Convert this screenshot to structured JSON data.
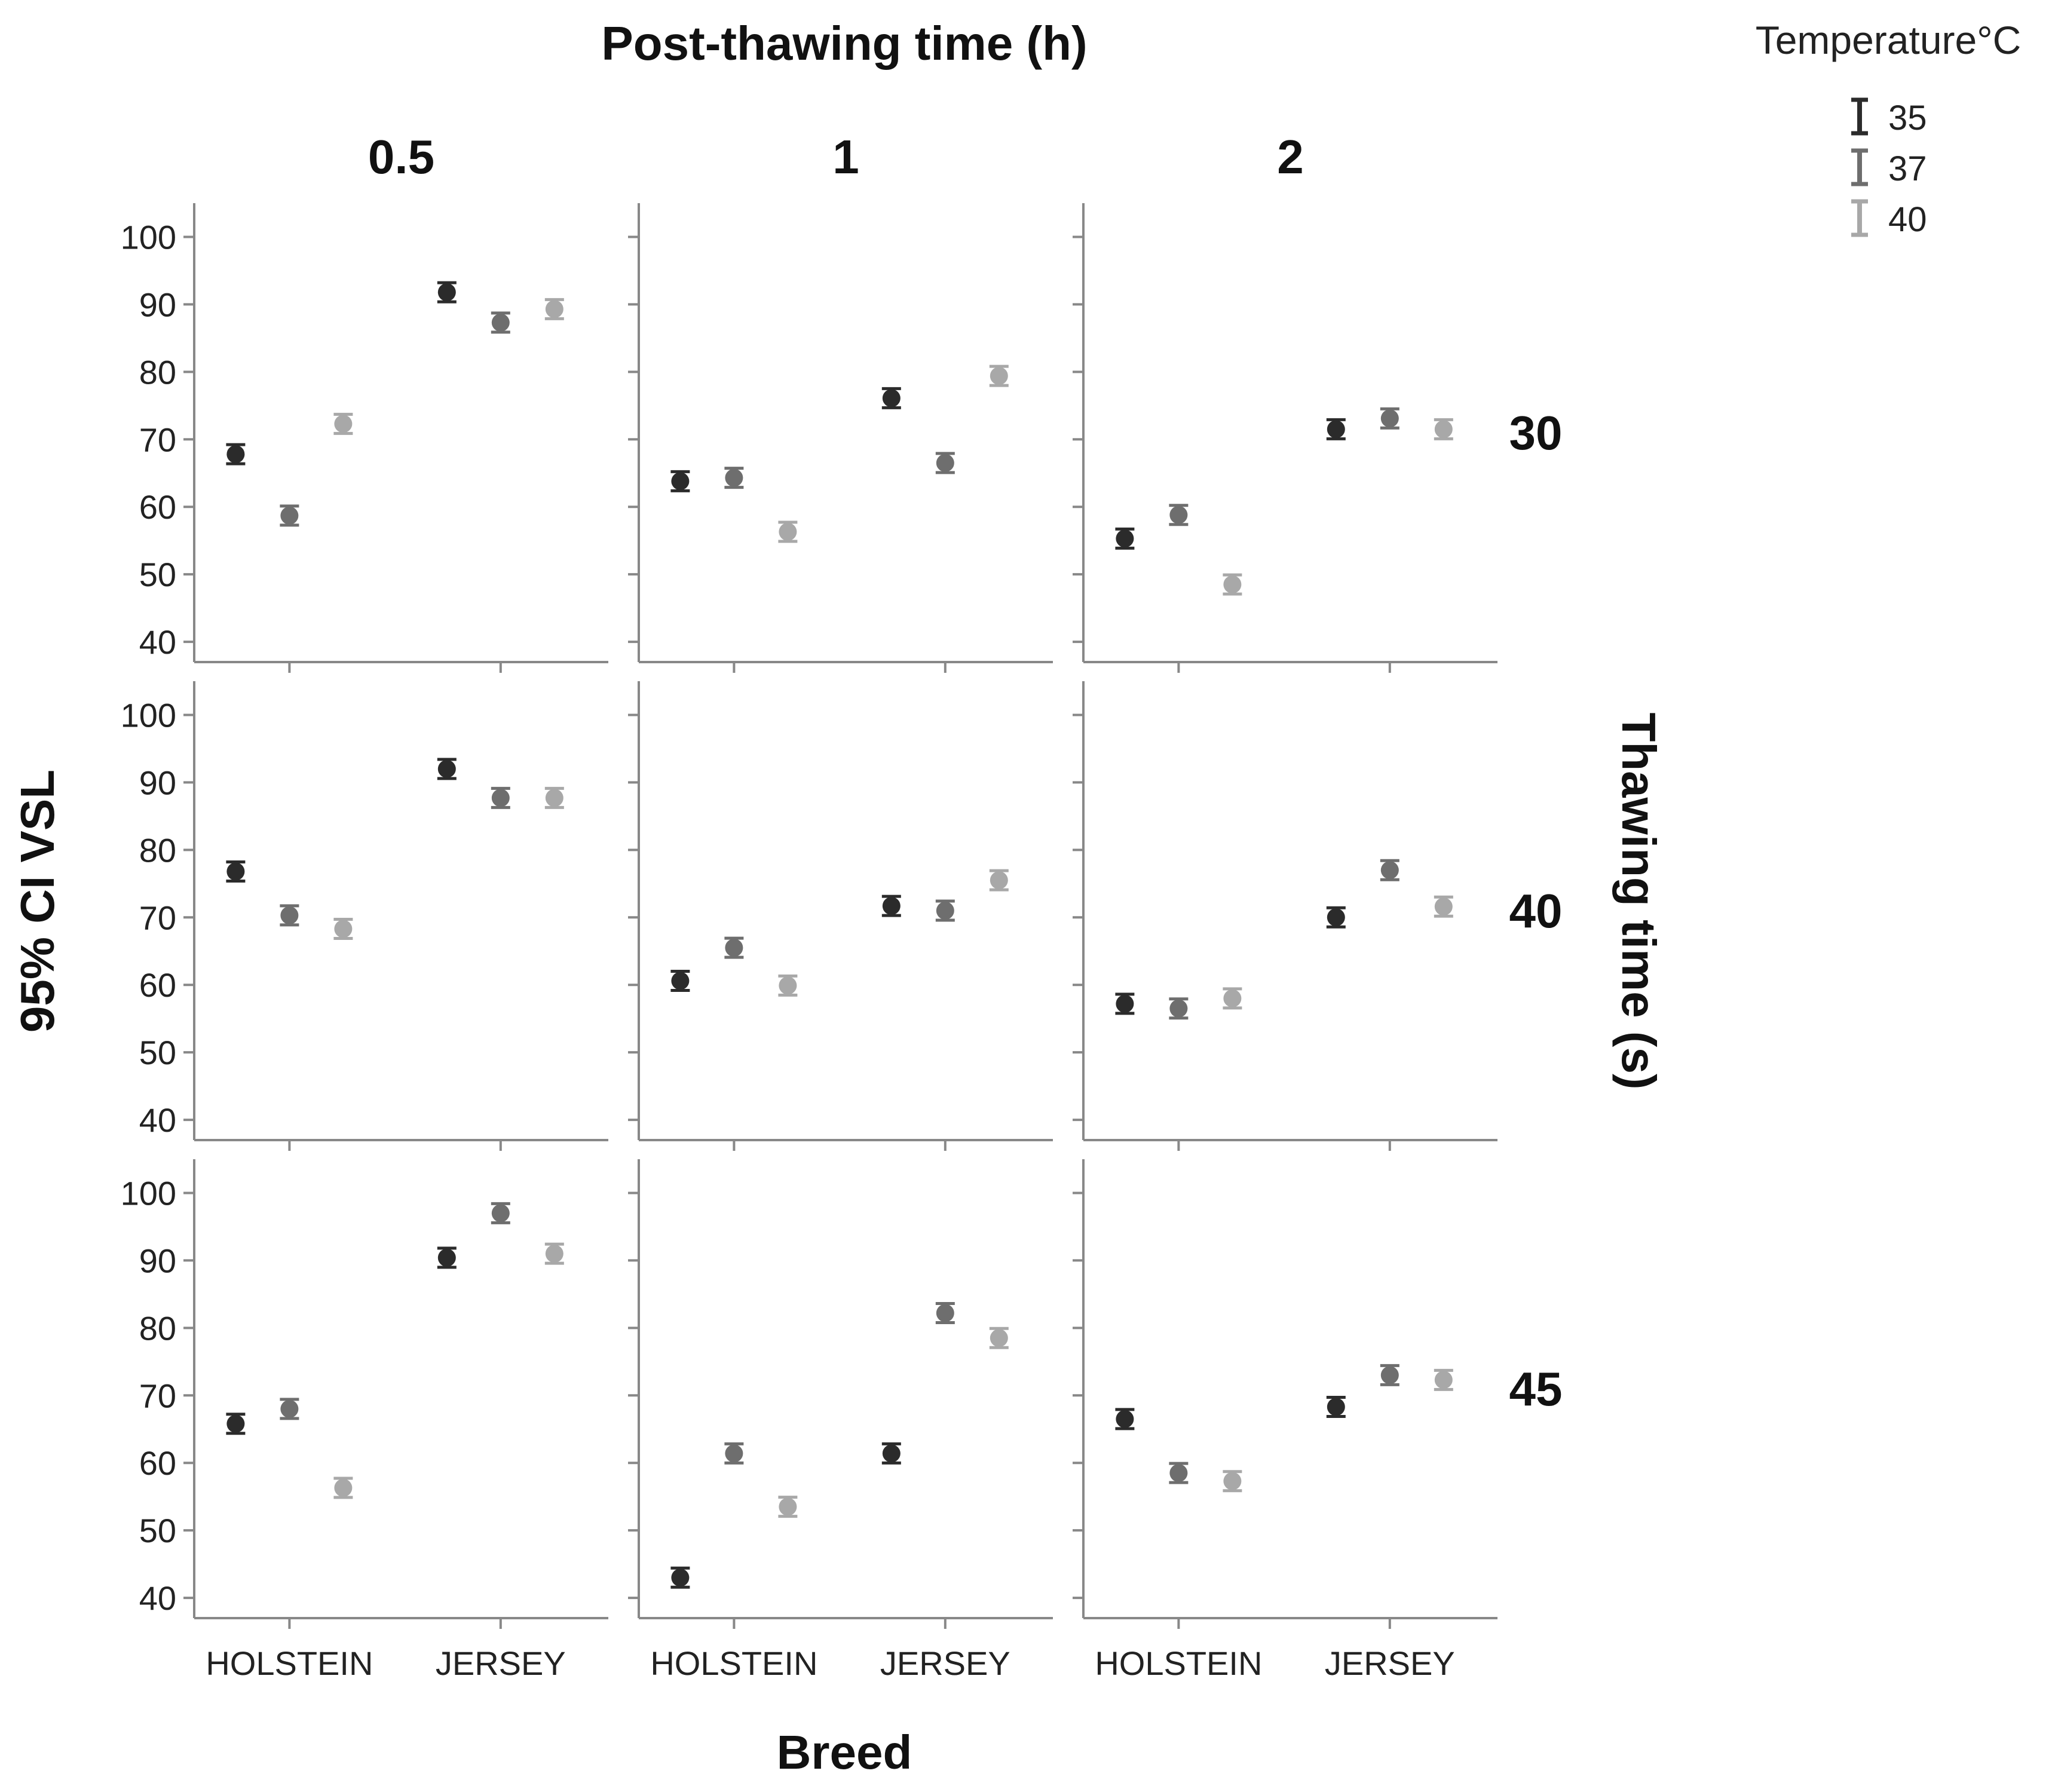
{
  "chart_data": {
    "type": "scatter",
    "title": "Post-thawing time (h)",
    "xlabel": "Breed",
    "ylabel": "95% CI VSL",
    "row_title": "Thawing time (s)",
    "column_values": [
      "0.5",
      "1",
      "2"
    ],
    "row_values": [
      "30",
      "40",
      "45"
    ],
    "categories": [
      "HOLSTEIN",
      "JERSEY"
    ],
    "ylim": [
      37,
      105
    ],
    "yticks": [
      "40",
      "50",
      "60",
      "70",
      "80",
      "90",
      "100"
    ],
    "legend": {
      "title": "Temperature°C",
      "position": "top-right",
      "entries": [
        "35",
        "37",
        "40"
      ]
    },
    "series_colors": [
      "#2b2b2b",
      "#6e6e6e",
      "#a8a8a8"
    ],
    "panels": [
      {
        "row": "30",
        "col": "0.5",
        "values": {
          "HOLSTEIN": [
            67.8,
            58.7,
            72.3
          ],
          "JERSEY": [
            91.8,
            87.3,
            89.3
          ]
        }
      },
      {
        "row": "30",
        "col": "1",
        "values": {
          "HOLSTEIN": [
            63.8,
            64.3,
            56.3
          ],
          "JERSEY": [
            76.1,
            66.5,
            79.4
          ]
        }
      },
      {
        "row": "30",
        "col": "2",
        "values": {
          "HOLSTEIN": [
            55.3,
            58.8,
            48.5
          ],
          "JERSEY": [
            71.5,
            73.1,
            71.5
          ]
        }
      },
      {
        "row": "40",
        "col": "0.5",
        "values": {
          "HOLSTEIN": [
            76.8,
            70.3,
            68.3
          ],
          "JERSEY": [
            92.0,
            87.7,
            87.7
          ]
        }
      },
      {
        "row": "40",
        "col": "1",
        "values": {
          "HOLSTEIN": [
            60.6,
            65.5,
            59.9
          ],
          "JERSEY": [
            71.7,
            71.0,
            75.5
          ]
        }
      },
      {
        "row": "40",
        "col": "2",
        "values": {
          "HOLSTEIN": [
            57.2,
            56.5,
            58.0
          ],
          "JERSEY": [
            70.0,
            77.0,
            71.6
          ]
        }
      },
      {
        "row": "45",
        "col": "0.5",
        "values": {
          "HOLSTEIN": [
            65.8,
            68.0,
            56.3
          ],
          "JERSEY": [
            90.4,
            97.0,
            91.0
          ]
        }
      },
      {
        "row": "45",
        "col": "1",
        "values": {
          "HOLSTEIN": [
            43.0,
            61.4,
            53.5
          ],
          "JERSEY": [
            61.4,
            82.2,
            78.5
          ]
        }
      },
      {
        "row": "45",
        "col": "2",
        "values": {
          "HOLSTEIN": [
            66.5,
            58.5,
            57.3
          ],
          "JERSEY": [
            68.3,
            73.0,
            72.3
          ]
        }
      }
    ]
  }
}
